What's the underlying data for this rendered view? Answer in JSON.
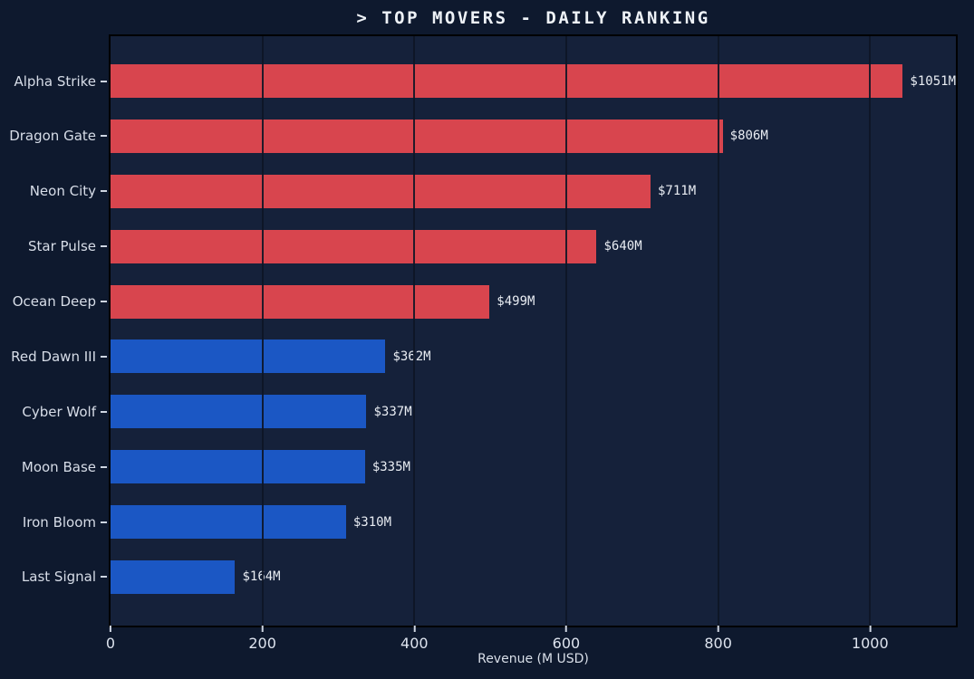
{
  "chart_data": {
    "type": "bar",
    "orientation": "horizontal",
    "title": "> TOP MOVERS - DAILY RANKING",
    "xlabel": "Revenue (M USD)",
    "categories": [
      "Alpha Strike",
      "Dragon Gate",
      "Neon City",
      "Star Pulse",
      "Ocean Deep",
      "Red Dawn III",
      "Cyber Wolf",
      "Moon Base",
      "Iron Bloom",
      "Last Signal"
    ],
    "values": [
      1051,
      806,
      711,
      640,
      499,
      362,
      337,
      335,
      310,
      164
    ],
    "value_labels": [
      "$1051M",
      "$806M",
      "$711M",
      "$640M",
      "$499M",
      "$362M",
      "$337M",
      "$335M",
      "$310M",
      "$164M"
    ],
    "bar_colors": [
      "#d8454e",
      "#d8454e",
      "#d8454e",
      "#d8454e",
      "#d8454e",
      "#1b57c4",
      "#1b57c4",
      "#1b57c4",
      "#1b57c4",
      "#1b57c4"
    ],
    "xlim": [
      0,
      1113
    ],
    "xticks": [
      0,
      200,
      400,
      600,
      800,
      1000
    ],
    "grid": true,
    "legend": false
  },
  "colors": {
    "background": "#0e192e",
    "plot_background": "#15213a",
    "red_bar": "#d8454e",
    "blue_bar": "#1b57c4",
    "gridline": "rgba(13,21,38,0.9)",
    "text": "#d7dde8",
    "title_text": "#eef2f7",
    "spine": "#000000"
  }
}
